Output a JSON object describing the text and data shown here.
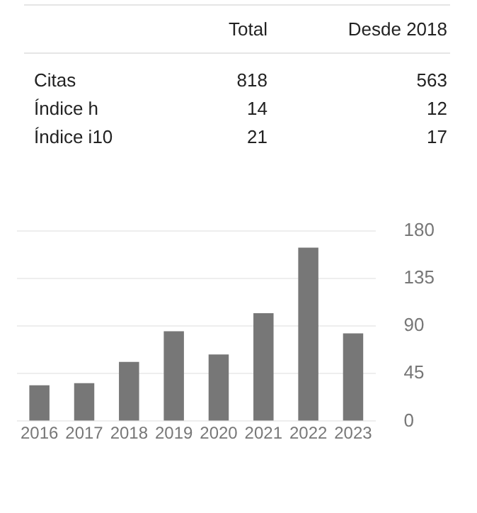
{
  "chart_data": [
    {
      "type": "other",
      "annotations": [
        "Total",
        "Desde 2018",
        "Citas",
        "818",
        "563",
        "Índice h",
        "14",
        "12",
        "Índice i10",
        "21",
        "17"
      ]
    },
    {
      "type": "bar",
      "categories": [
        "2016",
        "2017",
        "2018",
        "2019",
        "2020",
        "2021",
        "2022",
        "2023"
      ],
      "values": [
        34,
        36,
        56,
        85,
        63,
        102,
        164,
        83
      ],
      "color": "#777777",
      "ylim": [
        0,
        180
      ],
      "yticks": [
        0,
        45,
        90,
        135,
        180
      ],
      "grid": "y"
    }
  ]
}
